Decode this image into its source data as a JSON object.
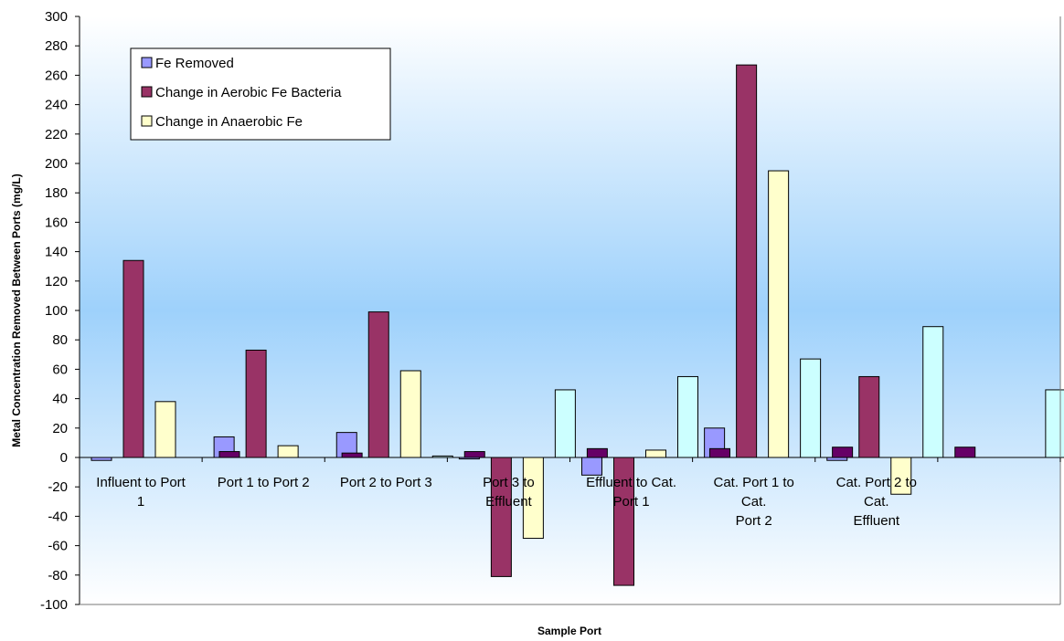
{
  "chart_data": {
    "type": "bar",
    "title": "",
    "xlabel": "Sample Port",
    "ylabel": "Metal Concentration Removed Between Ports (mg/L)",
    "ylim": [
      -100,
      300
    ],
    "ytick_step": 20,
    "grid": false,
    "legend_position": "top-left",
    "categories": [
      [
        "Influent to Port",
        "1"
      ],
      [
        "Port 1 to Port 2"
      ],
      [
        "Port 2 to Port 3"
      ],
      [
        "Port 3 to",
        "Effluent"
      ],
      [
        "Effluent to Cat.",
        "Port 1"
      ],
      [
        "Cat. Port 1 to",
        "Cat.",
        "Port 2"
      ],
      [
        "Cat. Port 2 to",
        "Cat.",
        "Effluent"
      ],
      [
        ""
      ]
    ],
    "series": [
      {
        "name": "Fe Removed",
        "color": "#9999ff",
        "in_legend": true,
        "values": [
          -2,
          14,
          17,
          -1,
          -12,
          20,
          -2,
          null
        ]
      },
      {
        "name": "Change in Aerobic Fe Bacteria",
        "color": "#993366",
        "in_legend": true,
        "values": [
          134,
          73,
          99,
          -81,
          -87,
          267,
          55,
          null
        ]
      },
      {
        "name": "Change in Anaerobic Fe",
        "color": "#ffffcc",
        "in_legend": true,
        "values": [
          38,
          8,
          59,
          -55,
          5,
          195,
          -25,
          null
        ]
      },
      {
        "name": "",
        "color": "#ccffff",
        "in_legend": false,
        "values": [
          null,
          null,
          1,
          46,
          55,
          67,
          89,
          46
        ]
      },
      {
        "name": "",
        "color": "#660066",
        "in_legend": false,
        "values": [
          4,
          3,
          4,
          6,
          6,
          7,
          7,
          7
        ]
      }
    ]
  }
}
